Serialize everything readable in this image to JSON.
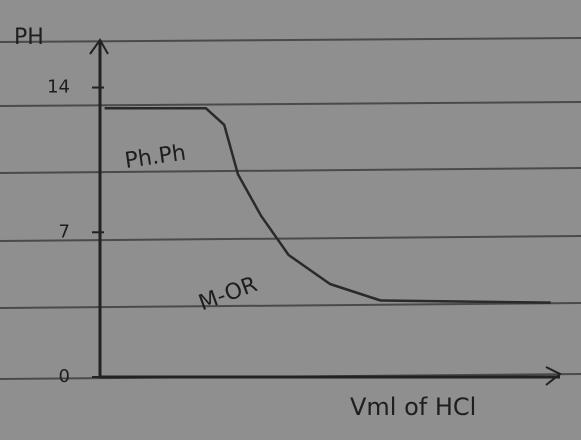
{
  "chart_data": {
    "type": "line",
    "ylabel": "PH",
    "xlabel": "Vml of HCl",
    "x": [
      0.1,
      2.3,
      2.7,
      3.0,
      3.5,
      4.1,
      5.0,
      6.1,
      9.8
    ],
    "values": [
      13.0,
      13.0,
      12.2,
      9.8,
      7.8,
      5.9,
      4.5,
      3.7,
      3.6
    ],
    "color": "#2a2a2a",
    "xlim": [
      0,
      10
    ],
    "ylim": [
      0,
      16.3
    ],
    "yticks": [
      0,
      7,
      14
    ],
    "grid": false,
    "annotations": [
      "Ph.Ph",
      "M-OR"
    ]
  }
}
